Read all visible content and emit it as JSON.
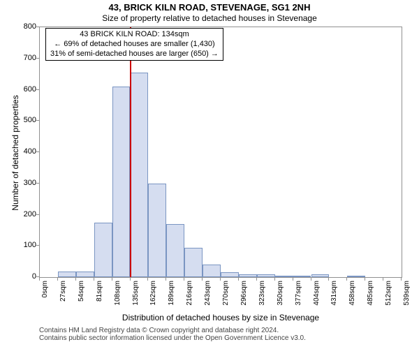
{
  "header": {
    "title": "43, BRICK KILN ROAD, STEVENAGE, SG1 2NH",
    "subtitle": "Size of property relative to detached houses in Stevenage"
  },
  "infobox": {
    "line1": "43 BRICK KILN ROAD: 134sqm",
    "line2": "← 69% of detached houses are smaller (1,430)",
    "line3": "31% of semi-detached houses are larger (650) →"
  },
  "chart": {
    "type": "histogram",
    "ylabel": "Number of detached properties",
    "xlabel": "Distribution of detached houses by size in Stevenage",
    "ylim": [
      0,
      800
    ],
    "ytick_step": 100,
    "yticks": [
      0,
      100,
      200,
      300,
      400,
      500,
      600,
      700,
      800
    ],
    "x_start": 0,
    "x_step": 27,
    "x_count": 21,
    "xtick_labels": [
      "0sqm",
      "27sqm",
      "54sqm",
      "81sqm",
      "108sqm",
      "135sqm",
      "162sqm",
      "189sqm",
      "216sqm",
      "243sqm",
      "270sqm",
      "296sqm",
      "323sqm",
      "350sqm",
      "377sqm",
      "404sqm",
      "431sqm",
      "458sqm",
      "485sqm",
      "512sqm",
      "539sqm"
    ],
    "bars": [
      0,
      18,
      18,
      175,
      610,
      655,
      300,
      170,
      95,
      40,
      15,
      10,
      8,
      5,
      3,
      8,
      0,
      2,
      0,
      0
    ],
    "marker_x": 134,
    "bar_fill": "#d5ddf0",
    "bar_border": "#7a95c2",
    "marker_color": "#cc0000",
    "background_color": "#ffffff",
    "grid_color": "#909090",
    "title_fontsize": 13,
    "label_fontsize": 12,
    "tick_fontsize": 11
  },
  "attribution": {
    "line1": "Contains HM Land Registry data © Crown copyright and database right 2024.",
    "line2": "Contains public sector information licensed under the Open Government Licence v3.0."
  }
}
